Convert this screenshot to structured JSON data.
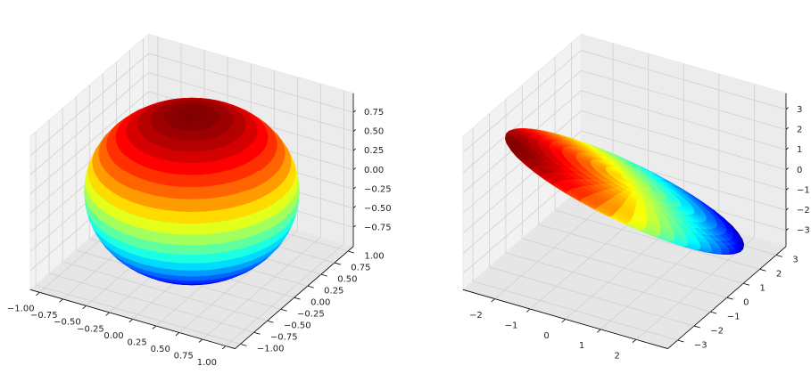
{
  "chart_data": [
    {
      "type": "surface3d",
      "colormap": "jet",
      "xlim": [
        -1.1,
        1.1
      ],
      "ylim": [
        -1.1,
        1.1
      ],
      "zlim": [
        -1,
        1
      ],
      "xticks": [
        {
          "value": -1,
          "label": "−1.00"
        },
        {
          "value": -0.75,
          "label": "−0.75"
        },
        {
          "value": -0.5,
          "label": "−0.50"
        },
        {
          "value": -0.25,
          "label": "−0.25"
        },
        {
          "value": 0,
          "label": "0.00"
        },
        0.25,
        {
          "value": 0.5,
          "label": "0.50"
        },
        0.75,
        {
          "value": 1,
          "label": "1.00"
        }
      ],
      "yticks": [
        {
          "value": -1,
          "label": "−1.00"
        },
        {
          "value": -0.75,
          "label": "−0.75"
        },
        {
          "value": -0.5,
          "label": "−0.50"
        },
        {
          "value": -0.25,
          "label": "−0.25"
        },
        {
          "value": 0,
          "label": "0.00"
        },
        0.25,
        {
          "value": 0.5,
          "label": "0.50"
        },
        0.75,
        {
          "value": 1,
          "label": "1.00"
        }
      ],
      "zticks": [
        {
          "value": -0.75,
          "label": "−0.75"
        },
        {
          "value": -0.5,
          "label": "−0.50"
        },
        {
          "value": -0.25,
          "label": "−0.25"
        },
        {
          "value": 0,
          "label": "0.00"
        },
        0.25,
        {
          "value": 0.5,
          "label": "0.50"
        },
        0.75
      ],
      "surface": {
        "shape": "ellipsoid",
        "center": [
          0,
          0,
          0
        ],
        "axes": [
          [
            1,
            0,
            0
          ],
          [
            0,
            1,
            0
          ],
          [
            0,
            0,
            1
          ]
        ]
      }
    },
    {
      "type": "surface3d",
      "colormap": "jet",
      "xlim": [
        -2.9,
        2.9
      ],
      "ylim": [
        -3.6,
        3.6
      ],
      "zlim": [
        -3.8,
        3.8
      ],
      "xticks": [
        {
          "value": -2,
          "label": "−2"
        },
        {
          "value": -1,
          "label": "−1"
        },
        0,
        1,
        2
      ],
      "yticks": [
        {
          "value": -3,
          "label": "−3"
        },
        {
          "value": -2,
          "label": "−2"
        },
        {
          "value": -1,
          "label": "−1"
        },
        0,
        1,
        2,
        3
      ],
      "zticks": [
        {
          "value": -3,
          "label": "−3"
        },
        {
          "value": -2,
          "label": "−2"
        },
        {
          "value": -1,
          "label": "−1"
        },
        0,
        1,
        2,
        3
      ],
      "surface": {
        "shape": "ellipsoid",
        "center": [
          0,
          0,
          0
        ],
        "axes": [
          [
            2.2,
            2.2,
            -2.64
          ],
          [
            1.8,
            -1.8,
            0
          ],
          [
            -0.23,
            -0.23,
            -0.38
          ]
        ]
      }
    }
  ]
}
